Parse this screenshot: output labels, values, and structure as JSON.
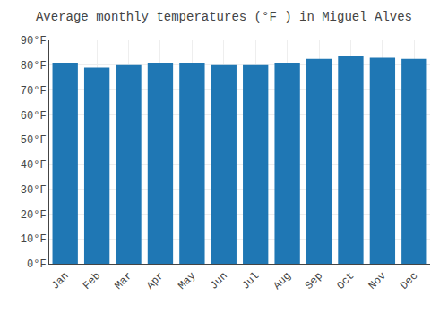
{
  "chart_data": {
    "type": "bar",
    "title": "Average monthly temperatures (°F ) in Miguel Alves",
    "categories": [
      "Jan",
      "Feb",
      "Mar",
      "Apr",
      "May",
      "Jun",
      "Jul",
      "Aug",
      "Sep",
      "Oct",
      "Nov",
      "Dec"
    ],
    "values": [
      81.0,
      79.0,
      80.0,
      81.0,
      81.0,
      80.0,
      80.0,
      81.0,
      82.5,
      83.5,
      83.0,
      82.5
    ],
    "ylim": [
      0,
      90
    ],
    "yticks": [
      {
        "value": 0,
        "label": "0°F"
      },
      {
        "value": 10,
        "label": "10°F"
      },
      {
        "value": 20,
        "label": "20°F"
      },
      {
        "value": 30,
        "label": "30°F"
      },
      {
        "value": 40,
        "label": "40°F"
      },
      {
        "value": 50,
        "label": "50°F"
      },
      {
        "value": 60,
        "label": "60°F"
      },
      {
        "value": 70,
        "label": "70°F"
      },
      {
        "value": 80,
        "label": "80°F"
      },
      {
        "value": 90,
        "label": "90°F"
      }
    ],
    "grid": true
  }
}
